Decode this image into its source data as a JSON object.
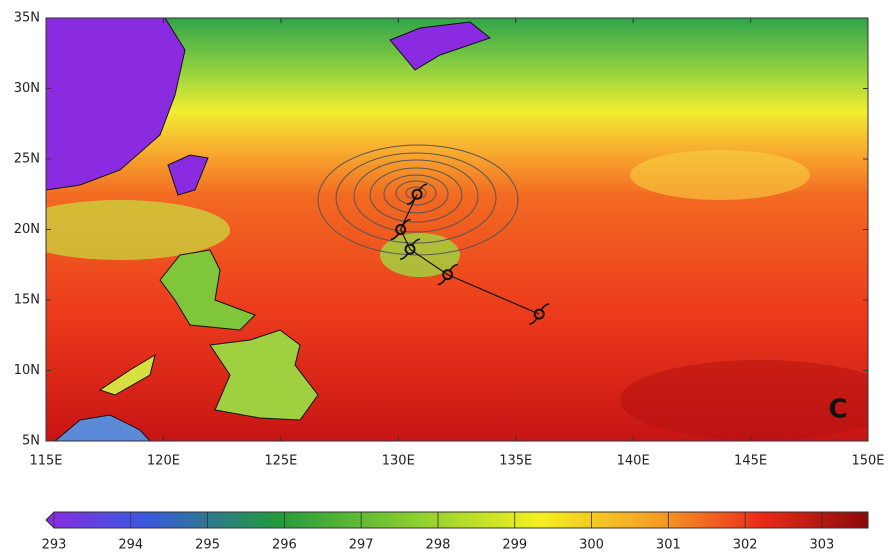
{
  "map": {
    "lonlim": [
      115,
      150
    ],
    "latlim": [
      5,
      35
    ],
    "lon_ticks": [
      {
        "value": 115,
        "label": "115E"
      },
      {
        "value": 120,
        "label": "120E"
      },
      {
        "value": 125,
        "label": "125E"
      },
      {
        "value": 130,
        "label": "130E"
      },
      {
        "value": 135,
        "label": "135E"
      },
      {
        "value": 140,
        "label": "140E"
      },
      {
        "value": 145,
        "label": "145E"
      },
      {
        "value": 150,
        "label": "150E"
      }
    ],
    "lat_ticks": [
      {
        "value": 5,
        "label": "5N"
      },
      {
        "value": 10,
        "label": "10N"
      },
      {
        "value": 15,
        "label": "15N"
      },
      {
        "value": 20,
        "label": "20N"
      },
      {
        "value": 25,
        "label": "25N"
      },
      {
        "value": 30,
        "label": "30N"
      },
      {
        "value": 35,
        "label": "35N"
      }
    ],
    "track": {
      "lon": [
        136,
        132.1,
        130.5,
        130.1,
        130.8
      ],
      "lat": [
        14,
        16.8,
        18.6,
        20,
        22.5
      ]
    },
    "panel_label": "C",
    "colorbar": {
      "lim": [
        293,
        303.6
      ],
      "ticks": [
        293,
        294,
        295,
        296,
        297,
        298,
        299,
        300,
        301,
        302,
        303
      ]
    }
  }
}
